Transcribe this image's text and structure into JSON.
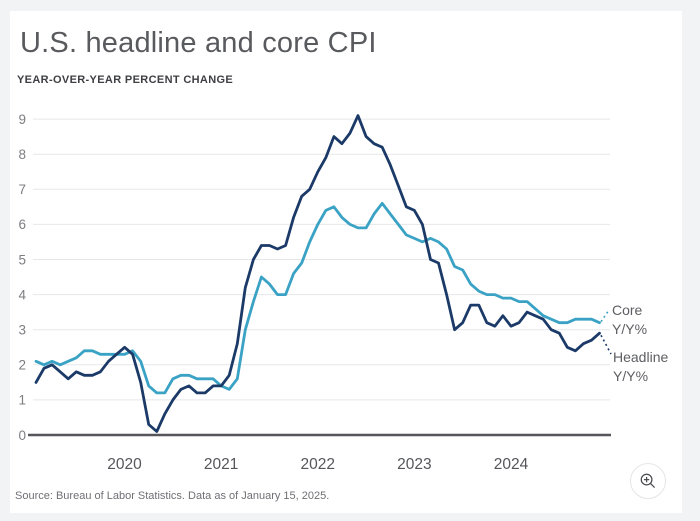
{
  "page": {
    "background_color": "#f2f3f5",
    "card_color": "#ffffff"
  },
  "header": {
    "title": "U.S. headline and core CPI",
    "subtitle": "YEAR-OVER-YEAR PERCENT CHANGE"
  },
  "footer": {
    "source": "Source: Bureau of Labor Statistics. Data as of January 15, 2025."
  },
  "controls": {
    "zoom_button": "zoom-in-magnifier"
  },
  "chart_data": {
    "type": "line",
    "title": "U.S. headline and core CPI",
    "ylabel": "YEAR-OVER-YEAR PERCENT CHANGE",
    "xlabel": "",
    "ylim": [
      0,
      9
    ],
    "ytick_labels": [
      "0",
      "1",
      "2",
      "3",
      "4",
      "5",
      "6",
      "7",
      "8",
      "9"
    ],
    "xtick_labels": [
      "2020",
      "2021",
      "2022",
      "2023",
      "2024"
    ],
    "grid": true,
    "legend_position": "end-of-line labels, right side",
    "x_monthly_start": "2019-02",
    "x_monthly_end": "2024-12",
    "colors": {
      "grid": "#e6e7e9",
      "axis_line": "#55565a",
      "ytick_text": "#7d7e82",
      "xtick_text": "#55565a",
      "end_label_text": "#5d5e62"
    },
    "series": [
      {
        "name": "Headline Y/Y%",
        "label_lines": [
          "Headline",
          "Y/Y%"
        ],
        "color": "#1b3a68",
        "values": [
          1.5,
          1.9,
          2.0,
          1.8,
          1.6,
          1.8,
          1.7,
          1.7,
          1.8,
          2.1,
          2.3,
          2.5,
          2.3,
          1.5,
          0.3,
          0.1,
          0.6,
          1.0,
          1.3,
          1.4,
          1.2,
          1.2,
          1.4,
          1.4,
          1.7,
          2.6,
          4.2,
          5.0,
          5.4,
          5.4,
          5.3,
          5.4,
          6.2,
          6.8,
          7.0,
          7.5,
          7.9,
          8.5,
          8.3,
          8.6,
          9.1,
          8.5,
          8.3,
          8.2,
          7.7,
          7.1,
          6.5,
          6.4,
          6.0,
          5.0,
          4.9,
          4.0,
          3.0,
          3.2,
          3.7,
          3.7,
          3.2,
          3.1,
          3.4,
          3.1,
          3.2,
          3.5,
          3.4,
          3.3,
          3.0,
          2.9,
          2.5,
          2.4,
          2.6,
          2.7,
          2.9
        ]
      },
      {
        "name": "Core Y/Y%",
        "label_lines": [
          "Core",
          "Y/Y%"
        ],
        "color": "#3aa2c4",
        "values": [
          2.1,
          2.0,
          2.1,
          2.0,
          2.1,
          2.2,
          2.4,
          2.4,
          2.3,
          2.3,
          2.3,
          2.3,
          2.4,
          2.1,
          1.4,
          1.2,
          1.2,
          1.6,
          1.7,
          1.7,
          1.6,
          1.6,
          1.6,
          1.4,
          1.3,
          1.6,
          3.0,
          3.8,
          4.5,
          4.3,
          4.0,
          4.0,
          4.6,
          4.9,
          5.5,
          6.0,
          6.4,
          6.5,
          6.2,
          6.0,
          5.9,
          5.9,
          6.3,
          6.6,
          6.3,
          6.0,
          5.7,
          5.6,
          5.5,
          5.6,
          5.5,
          5.3,
          4.8,
          4.7,
          4.3,
          4.1,
          4.0,
          4.0,
          3.9,
          3.9,
          3.8,
          3.8,
          3.6,
          3.4,
          3.3,
          3.2,
          3.2,
          3.3,
          3.3,
          3.3,
          3.2
        ]
      }
    ]
  }
}
